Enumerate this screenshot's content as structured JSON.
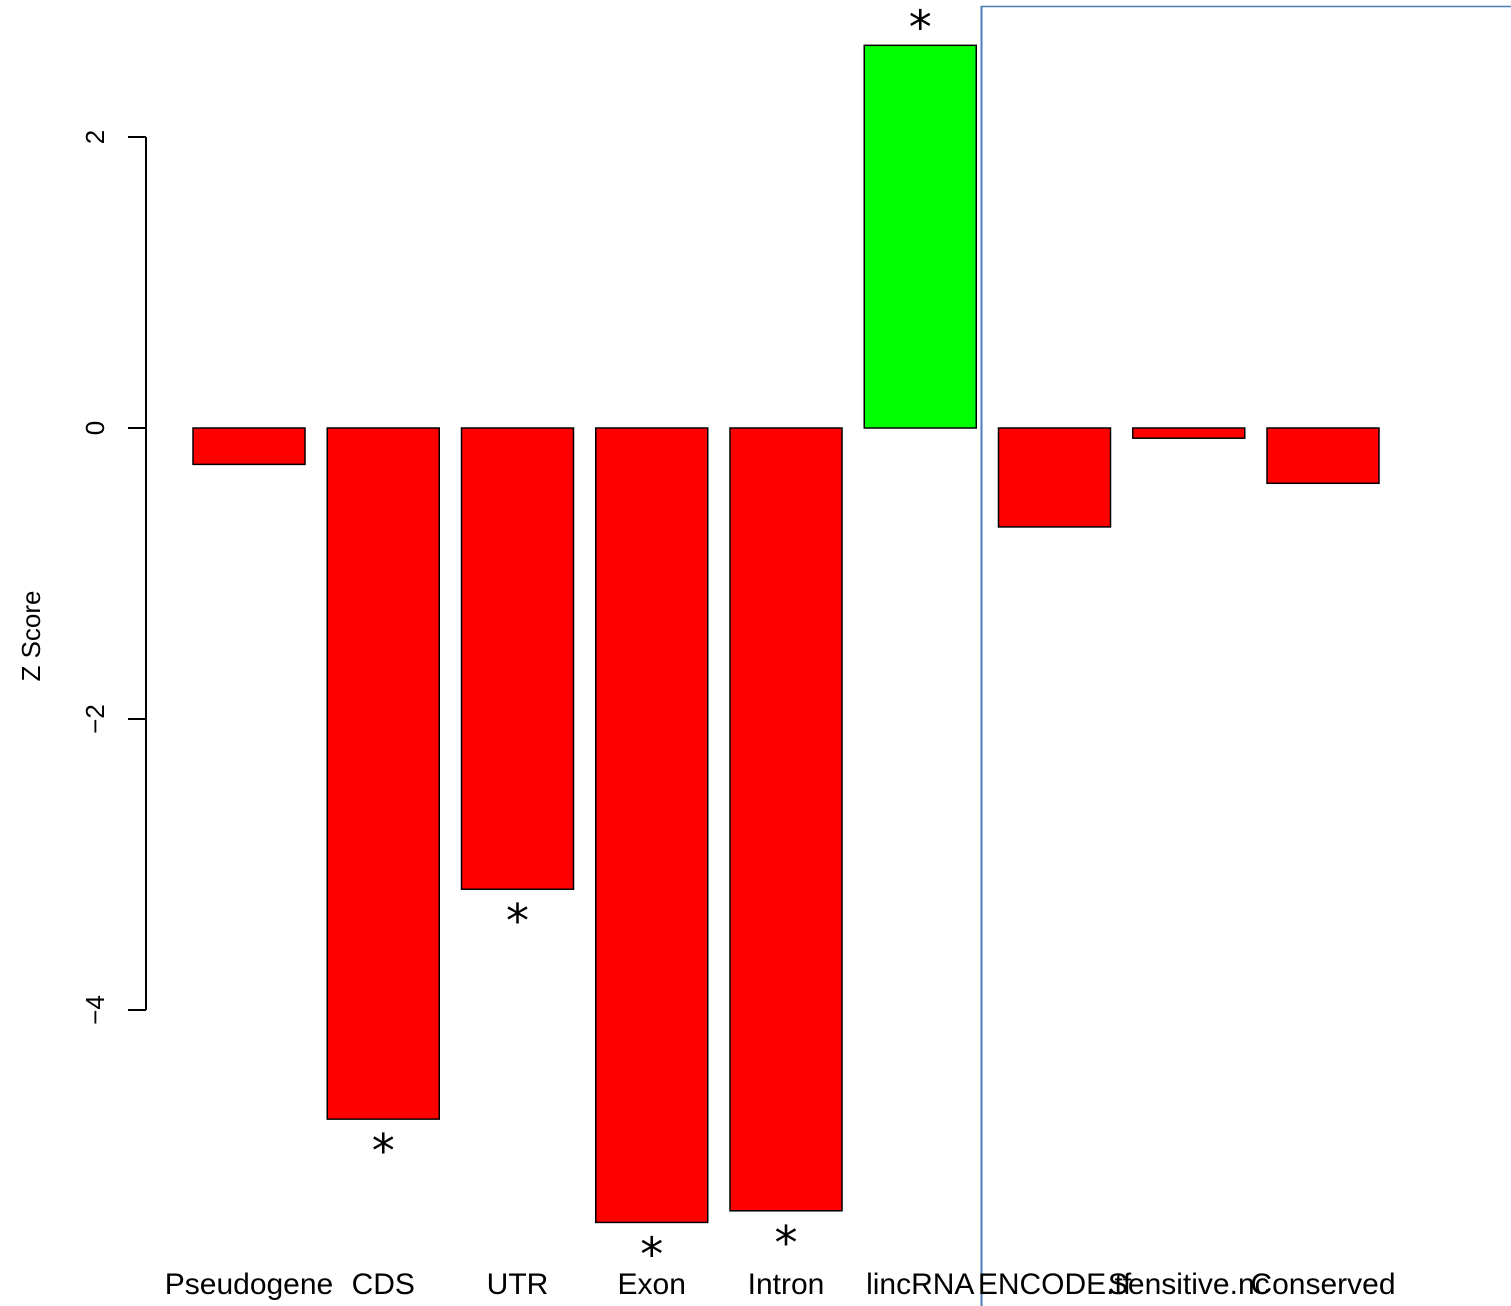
{
  "chart_data": {
    "type": "bar",
    "title": "",
    "xlabel": "",
    "ylabel": "Z Score",
    "ylim": [
      -5.6,
      2.9
    ],
    "yticks": [
      -4,
      -2,
      0,
      2
    ],
    "ytick_labels": [
      "−4",
      "−2",
      "0",
      "2"
    ],
    "grid": false,
    "categories": [
      "Pseudogene",
      "CDS",
      "UTR",
      "Exon",
      "Intron",
      "lincRNA",
      "ENCODE.tf",
      "Sensitive.nc",
      "Conserved"
    ],
    "values": [
      -0.25,
      -4.75,
      -3.17,
      -5.46,
      -5.38,
      2.63,
      -0.68,
      -0.07,
      -0.38
    ],
    "significant": [
      false,
      true,
      true,
      true,
      true,
      true,
      false,
      false,
      false
    ],
    "significance_marker": "*",
    "colors": {
      "positive": "#00ff00",
      "negative": "#ff0000",
      "bar_outline": "#000000",
      "divider": "#4a7ebb"
    }
  }
}
